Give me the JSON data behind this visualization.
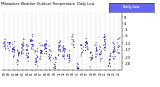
{
  "title": "Milwaukee Weather Outdoor Temperature  Daily Low",
  "dot_color": "#0000cd",
  "dark_dot_color": "#00008b",
  "bg_color": "#ffffff",
  "grid_color": "#b0b0b0",
  "legend_bg": "#6666ff",
  "num_years": 26,
  "ylim": [
    -33,
    13
  ],
  "ytick_vals": [
    9,
    4,
    -1,
    -6,
    -12,
    -17,
    -23,
    -28
  ],
  "ytick_labels": [
    "9",
    "4",
    "-1",
    "-6",
    "-12",
    "-17",
    "-23",
    "-28"
  ],
  "seed": 99
}
